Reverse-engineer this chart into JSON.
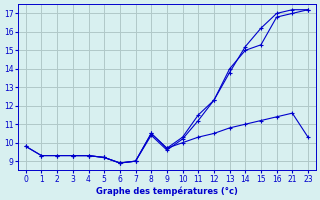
{
  "title": "Graphe des températures (°c)",
  "bg_color": "#d8f0f0",
  "grid_color": "#b0c8c8",
  "line_color": "#0000cc",
  "tick_labels_x": [
    "0",
    "1",
    "2",
    "3",
    "4",
    "5",
    "6",
    "7",
    "8",
    "9",
    "10",
    "11",
    "12",
    "13",
    "14",
    "15",
    "16",
    "21",
    "23"
  ],
  "yticks": [
    9,
    10,
    11,
    12,
    13,
    14,
    15,
    16,
    17
  ],
  "ylim": [
    8.5,
    17.5
  ],
  "series": [
    {
      "xi": [
        0,
        1,
        2,
        3,
        4,
        5,
        6,
        7,
        8,
        9,
        10,
        11,
        12,
        13,
        14,
        15,
        16,
        17,
        18
      ],
      "y": [
        9.8,
        9.3,
        9.3,
        9.3,
        9.3,
        9.2,
        8.9,
        9.0,
        10.5,
        9.7,
        10.0,
        10.3,
        10.5,
        10.8,
        11.0,
        11.2,
        11.4,
        11.6,
        10.3
      ]
    },
    {
      "xi": [
        0,
        1,
        2,
        3,
        4,
        5,
        6,
        7,
        8,
        9,
        10,
        11,
        12,
        13,
        14,
        15,
        16,
        17,
        18
      ],
      "y": [
        9.8,
        9.3,
        9.3,
        9.3,
        9.3,
        9.2,
        8.9,
        9.0,
        10.5,
        9.7,
        10.3,
        11.5,
        12.3,
        13.8,
        15.2,
        16.2,
        17.0,
        17.2,
        17.2
      ]
    },
    {
      "xi": [
        3,
        4,
        5,
        6,
        7,
        8,
        9,
        10,
        11,
        12,
        13,
        14,
        15,
        16,
        17,
        18
      ],
      "y": [
        9.3,
        9.3,
        9.2,
        8.9,
        9.0,
        10.4,
        9.6,
        10.2,
        11.2,
        12.3,
        14.0,
        15.0,
        15.3,
        16.8,
        17.0,
        17.2
      ]
    }
  ]
}
